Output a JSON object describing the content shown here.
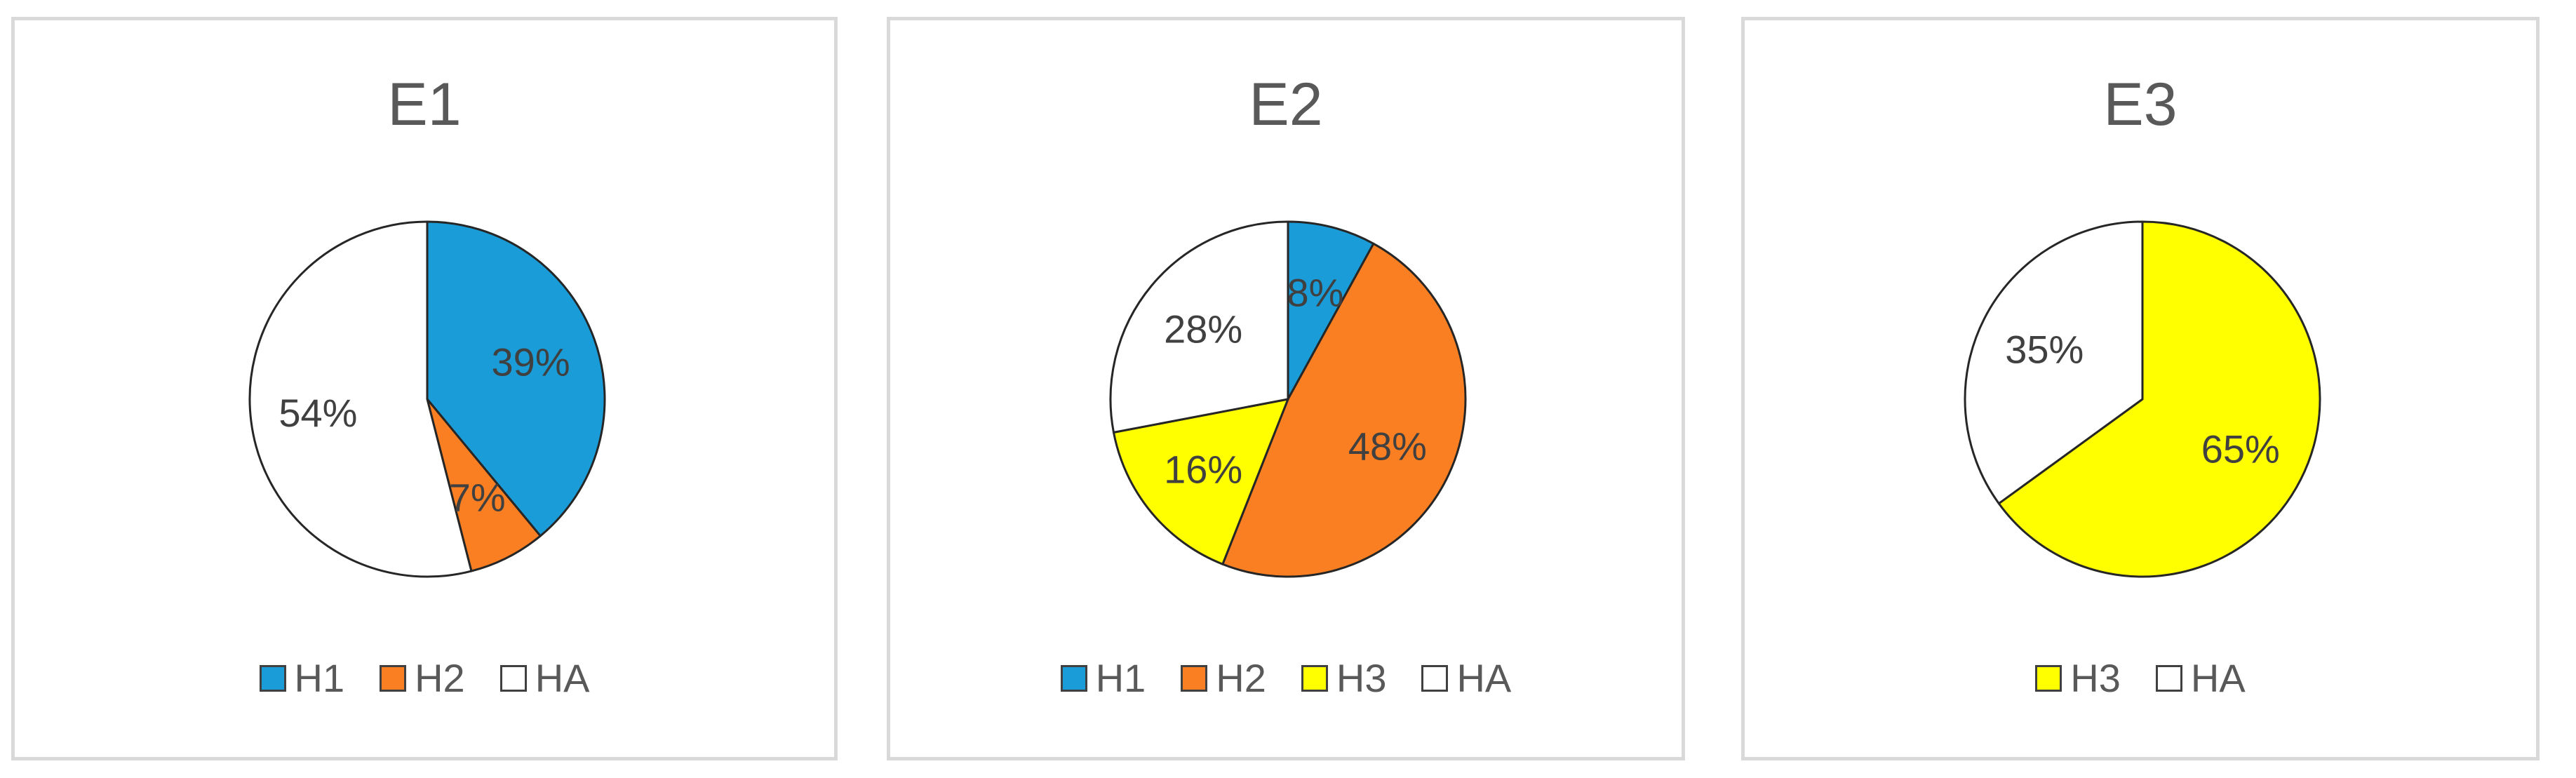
{
  "chart_data": [
    {
      "type": "pie",
      "title": "E1",
      "categories": [
        "H1",
        "H2",
        "HA"
      ],
      "values": [
        39,
        7,
        54
      ],
      "data_labels": [
        "39%",
        "7%",
        "54%"
      ],
      "colors": [
        "#1a9cd8",
        "#f97f22",
        "#ffffff"
      ],
      "legend": [
        "H1",
        "H2",
        "HA"
      ],
      "legend_position": "bottom"
    },
    {
      "type": "pie",
      "title": "E2",
      "categories": [
        "H1",
        "H2",
        "H3",
        "HA"
      ],
      "values": [
        8,
        48,
        16,
        28
      ],
      "data_labels": [
        "8%",
        "48%",
        "16%",
        "28%"
      ],
      "colors": [
        "#1a9cd8",
        "#f97f22",
        "#ffff00",
        "#ffffff"
      ],
      "legend": [
        "H1",
        "H2",
        "H3",
        "HA"
      ],
      "legend_position": "bottom"
    },
    {
      "type": "pie",
      "title": "E3",
      "categories": [
        "H3",
        "HA"
      ],
      "values": [
        65,
        35
      ],
      "data_labels": [
        "65%",
        "35%"
      ],
      "colors": [
        "#ffff00",
        "#ffffff"
      ],
      "legend": [
        "H3",
        "HA"
      ],
      "legend_position": "bottom"
    }
  ]
}
